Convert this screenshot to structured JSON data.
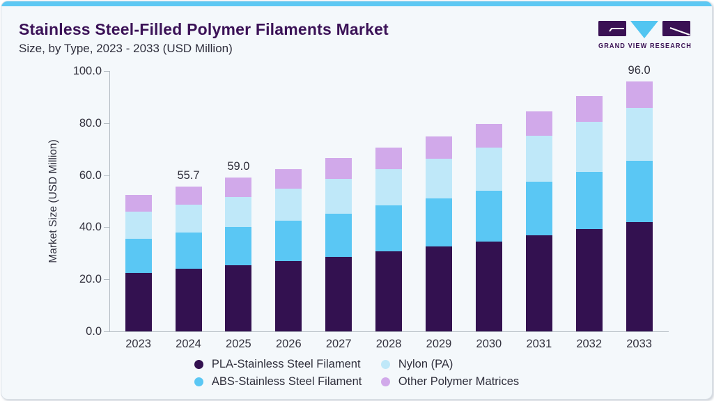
{
  "header": {
    "title": "Stainless Steel-Filled Polymer Filaments Market",
    "subtitle": "Size, by Type, 2023 - 2033 (USD Million)"
  },
  "logo": {
    "text": "GRAND VIEW RESEARCH",
    "purple": "#3a1154",
    "blue": "#52c5f1"
  },
  "colors": {
    "background": "#f4f8fb",
    "accent_bar": "#5dc8f3",
    "title": "#3b1257",
    "text": "#33323e",
    "axis": "#b4bcc3"
  },
  "chart_data": {
    "type": "bar",
    "stacked": true,
    "title": "Stainless Steel-Filled Polymer Filaments Market Size, by Type, 2023 - 2033 (USD Million)",
    "xlabel": "",
    "ylabel": "Market Size (USD Million)",
    "ylim": [
      0,
      100
    ],
    "yticks": [
      0,
      20,
      40,
      60,
      80,
      100
    ],
    "ytick_decimals": 1,
    "grid": false,
    "legend_position": "bottom",
    "categories": [
      "2023",
      "2024",
      "2025",
      "2026",
      "2027",
      "2028",
      "2029",
      "2030",
      "2031",
      "2032",
      "2033"
    ],
    "series": [
      {
        "name": "PLA-Stainless Steel Filament",
        "color": "#331150",
        "values": [
          22.4,
          24.1,
          25.4,
          27.0,
          28.7,
          30.7,
          32.5,
          34.6,
          36.9,
          39.3,
          41.9
        ]
      },
      {
        "name": "ABS-Stainless Steel Filament",
        "color": "#5ac7f4",
        "values": [
          13.1,
          13.9,
          14.8,
          15.6,
          16.6,
          17.6,
          18.5,
          19.4,
          20.7,
          22.0,
          23.5
        ]
      },
      {
        "name": "Nylon (PA)",
        "color": "#bfe8f9",
        "values": [
          10.5,
          10.6,
          11.3,
          12.1,
          13.2,
          13.9,
          15.3,
          16.6,
          17.6,
          19.1,
          20.3
        ]
      },
      {
        "name": "Other Polymer Matrices",
        "color": "#d1a9ea",
        "values": [
          6.4,
          7.1,
          7.5,
          7.7,
          8.0,
          8.3,
          8.6,
          9.2,
          9.4,
          9.9,
          10.3
        ]
      }
    ],
    "totals": [
      52.4,
      55.7,
      59.0,
      62.4,
      66.5,
      70.5,
      74.9,
      79.8,
      84.6,
      90.3,
      96.0
    ],
    "legend_order": [
      0,
      2,
      1,
      3
    ],
    "bar_total_labels": [
      {
        "category": "2024",
        "label": "55.7"
      },
      {
        "category": "2025",
        "label": "59.0"
      },
      {
        "category": "2033",
        "label": "96.0"
      }
    ]
  }
}
